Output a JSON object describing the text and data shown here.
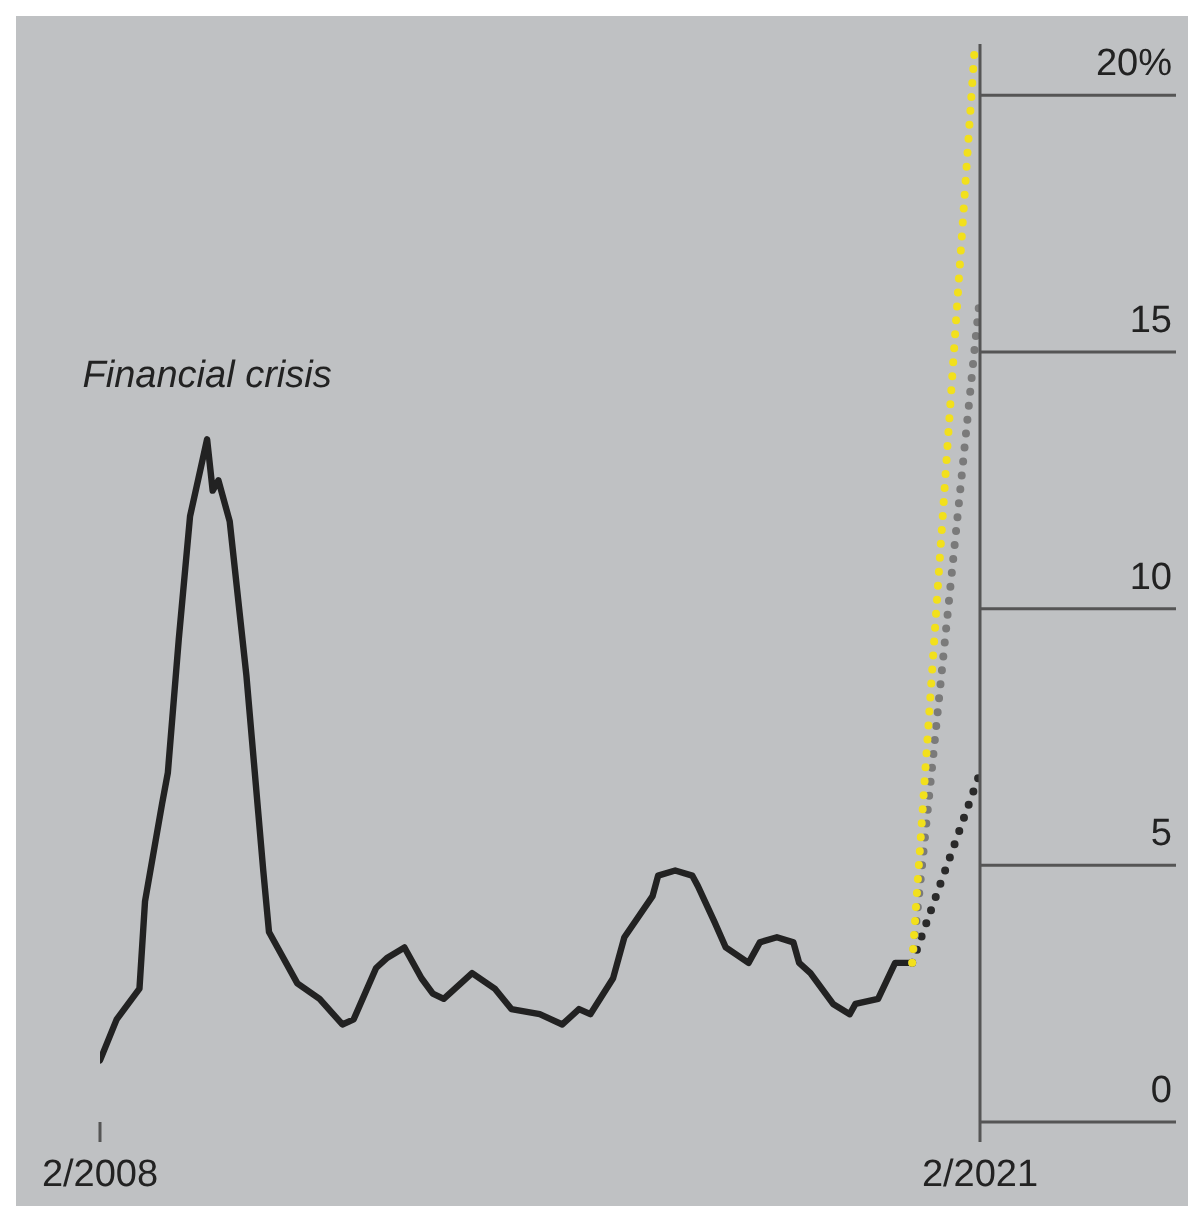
{
  "chart_data": {
    "type": "line",
    "xlim": [
      "2008-02",
      "2021-02"
    ],
    "xticks": [
      {
        "value": "2008-02",
        "label": "2/2008"
      },
      {
        "value": "2021-02",
        "label": "2/2021"
      }
    ],
    "ylim": [
      0,
      21
    ],
    "yticks": [
      0,
      5,
      10,
      15,
      {
        "value": 20,
        "label": "20%"
      }
    ],
    "grid": false,
    "marker": "none",
    "annotations": [
      {
        "text": "Financial crisis",
        "x": "2009-09",
        "y": 13.3
      }
    ],
    "series": [
      {
        "color": "#222222",
        "line_style": "solid",
        "x": [
          "2008-02",
          "2008-05",
          "2008-09",
          "2008-10",
          "2009-01",
          "2009-02",
          "2009-04",
          "2009-06",
          "2009-09",
          "2009-10",
          "2009-11",
          "2010-01",
          "2010-04",
          "2010-07",
          "2010-08",
          "2011-01",
          "2011-05",
          "2011-09",
          "2011-11",
          "2012-03",
          "2012-05",
          "2012-08",
          "2012-11",
          "2013-01",
          "2013-03",
          "2013-08",
          "2013-12",
          "2014-03",
          "2014-08",
          "2014-12",
          "2015-03",
          "2015-05",
          "2015-09",
          "2015-11",
          "2016-04",
          "2016-05",
          "2016-08",
          "2016-11",
          "2016-12",
          "2017-03",
          "2017-05",
          "2017-09",
          "2017-11",
          "2018-02",
          "2018-05",
          "2018-06",
          "2018-08",
          "2018-12",
          "2019-03",
          "2019-04",
          "2019-08",
          "2019-11",
          "2020-02"
        ],
        "values": [
          1.2,
          2.0,
          2.6,
          4.3,
          6.2,
          6.8,
          9.4,
          11.8,
          13.3,
          12.3,
          12.5,
          11.7,
          8.7,
          4.9,
          3.7,
          2.7,
          2.4,
          1.9,
          2.0,
          3.0,
          3.2,
          3.4,
          2.8,
          2.5,
          2.4,
          2.9,
          2.6,
          2.2,
          2.1,
          1.9,
          2.2,
          2.1,
          2.8,
          3.6,
          4.4,
          4.8,
          4.9,
          4.8,
          4.6,
          3.9,
          3.4,
          3.1,
          3.5,
          3.6,
          3.5,
          3.1,
          2.9,
          2.3,
          2.1,
          2.3,
          2.4,
          3.1,
          3.1
        ]
      },
      {
        "color": "#f2e01c",
        "line_style": "dotted",
        "x": [
          "2020-02",
          "2021-01"
        ],
        "values": [
          3.1,
          20.8
        ]
      },
      {
        "color": "#7a7a7a",
        "line_style": "dotted",
        "x": [
          "2020-02",
          "2021-02"
        ],
        "values": [
          3.1,
          16.1
        ]
      },
      {
        "color": "#2a2a2a",
        "line_style": "dotted",
        "x": [
          "2020-02",
          "2021-02"
        ],
        "values": [
          3.1,
          6.8
        ]
      }
    ]
  }
}
